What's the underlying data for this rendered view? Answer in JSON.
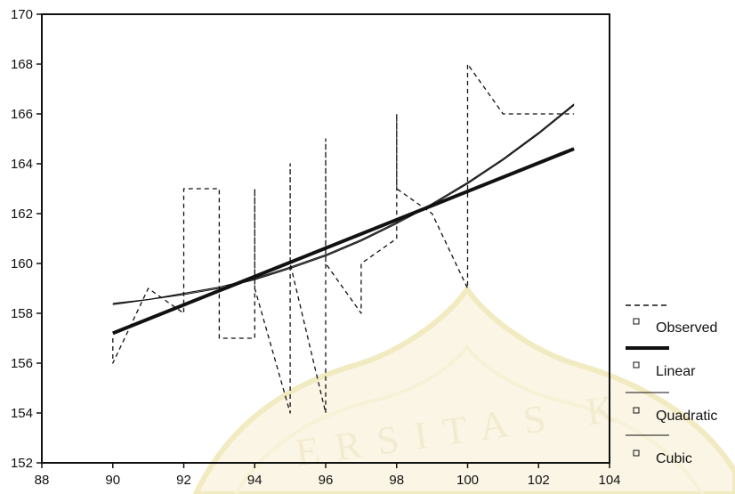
{
  "chart_data": {
    "type": "line",
    "title": "",
    "xlabel": "",
    "ylabel": "",
    "xlim": [
      88,
      104
    ],
    "ylim": [
      152,
      170
    ],
    "xticks": [
      88,
      90,
      92,
      94,
      96,
      98,
      100,
      102,
      104
    ],
    "yticks": [
      152,
      154,
      156,
      158,
      160,
      162,
      164,
      166,
      168,
      170
    ],
    "grid": false,
    "legend_position": "right",
    "series": [
      {
        "name": "Observed",
        "style": "dashed",
        "x": [
          90,
          90,
          91,
          92,
          92,
          93,
          93,
          94,
          94,
          94,
          95,
          95,
          95,
          96,
          96,
          96,
          97,
          97,
          98,
          98,
          98,
          99,
          100,
          100,
          101,
          103
        ],
        "y": [
          157,
          156,
          159,
          158,
          163,
          163,
          157,
          157,
          163,
          159,
          154,
          164,
          160,
          154,
          165,
          160,
          158,
          160,
          161,
          166,
          163,
          162,
          159,
          168,
          166,
          166
        ]
      },
      {
        "name": "Linear",
        "style": "thick",
        "x": [
          90,
          103
        ],
        "y": [
          157.2,
          164.6
        ]
      },
      {
        "name": "Quadratic",
        "style": "thin",
        "x": [
          90,
          91,
          92,
          93,
          94,
          95,
          96,
          97,
          98,
          99,
          100,
          101,
          102,
          103
        ],
        "y": [
          158.4,
          158.55,
          158.75,
          159.0,
          159.35,
          159.8,
          160.3,
          160.9,
          161.6,
          162.35,
          163.2,
          164.15,
          165.2,
          166.35
        ]
      },
      {
        "name": "Cubic",
        "style": "thin",
        "x": [
          90,
          91,
          92,
          93,
          94,
          95,
          96,
          97,
          98,
          99,
          100,
          101,
          102,
          103
        ],
        "y": [
          158.35,
          158.55,
          158.8,
          159.05,
          159.4,
          159.85,
          160.35,
          160.95,
          161.65,
          162.4,
          163.25,
          164.2,
          165.25,
          166.4
        ]
      }
    ]
  },
  "watermark": {
    "text": "ERSITAS K",
    "color": "#f0e2a0"
  }
}
